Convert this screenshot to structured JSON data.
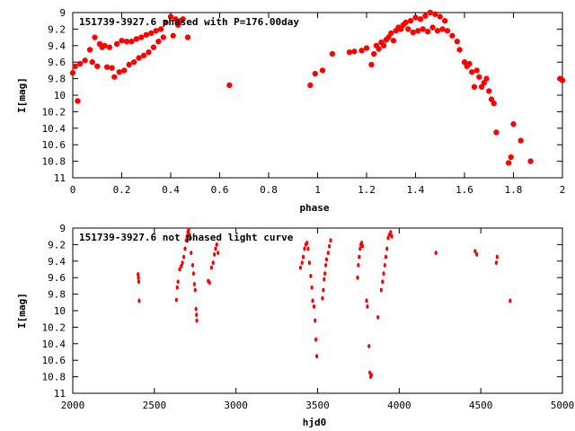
{
  "chart_data": [
    {
      "type": "scatter",
      "title": "151739-3927.6 phased with P=176.00day",
      "xlabel": "phase",
      "ylabel": "I[mag]",
      "xlim": [
        0,
        2
      ],
      "ylim": [
        11,
        9
      ],
      "y_inverted": true,
      "xticks": [
        "0",
        "0.2",
        "0.4",
        "0.6",
        "0.8",
        "1",
        "1.2",
        "1.4",
        "1.6",
        "1.8",
        "2"
      ],
      "yticks": [
        "9",
        "9.2",
        "9.4",
        "9.6",
        "9.8",
        "10",
        "10.2",
        "10.4",
        "10.6",
        "10.8",
        "11"
      ],
      "grid": false,
      "marker_color": "#ff0000",
      "marker": "filled-octagon",
      "points": [
        [
          0.0,
          9.73
        ],
        [
          0.01,
          9.65
        ],
        [
          0.02,
          10.07
        ],
        [
          0.03,
          9.62
        ],
        [
          0.05,
          9.58
        ],
        [
          0.07,
          9.45
        ],
        [
          0.08,
          9.6
        ],
        [
          0.09,
          9.3
        ],
        [
          0.1,
          9.65
        ],
        [
          0.11,
          9.38
        ],
        [
          0.12,
          9.42
        ],
        [
          0.13,
          9.4
        ],
        [
          0.14,
          9.66
        ],
        [
          0.15,
          9.42
        ],
        [
          0.16,
          9.67
        ],
        [
          0.17,
          9.78
        ],
        [
          0.18,
          9.38
        ],
        [
          0.19,
          9.72
        ],
        [
          0.2,
          9.34
        ],
        [
          0.21,
          9.7
        ],
        [
          0.22,
          9.35
        ],
        [
          0.23,
          9.63
        ],
        [
          0.24,
          9.35
        ],
        [
          0.25,
          9.6
        ],
        [
          0.26,
          9.32
        ],
        [
          0.27,
          9.55
        ],
        [
          0.28,
          9.3
        ],
        [
          0.29,
          9.52
        ],
        [
          0.3,
          9.27
        ],
        [
          0.31,
          9.48
        ],
        [
          0.32,
          9.25
        ],
        [
          0.33,
          9.42
        ],
        [
          0.34,
          9.22
        ],
        [
          0.35,
          9.35
        ],
        [
          0.36,
          9.2
        ],
        [
          0.37,
          9.3
        ],
        [
          0.38,
          9.12
        ],
        [
          0.4,
          9.05
        ],
        [
          0.41,
          9.28
        ],
        [
          0.42,
          9.08
        ],
        [
          0.43,
          9.15
        ],
        [
          0.44,
          9.1
        ],
        [
          0.45,
          9.08
        ],
        [
          0.47,
          9.3
        ],
        [
          0.64,
          9.88
        ],
        [
          0.97,
          9.88
        ],
        [
          0.99,
          9.74
        ],
        [
          1.02,
          9.7
        ],
        [
          1.06,
          9.5
        ],
        [
          1.13,
          9.48
        ],
        [
          1.15,
          9.47
        ],
        [
          1.18,
          9.46
        ],
        [
          1.2,
          9.43
        ],
        [
          1.22,
          9.63
        ],
        [
          1.23,
          9.5
        ],
        [
          1.24,
          9.4
        ],
        [
          1.25,
          9.44
        ],
        [
          1.26,
          9.36
        ],
        [
          1.27,
          9.4
        ],
        [
          1.28,
          9.33
        ],
        [
          1.29,
          9.3
        ],
        [
          1.3,
          9.25
        ],
        [
          1.31,
          9.34
        ],
        [
          1.32,
          9.22
        ],
        [
          1.33,
          9.18
        ],
        [
          1.34,
          9.2
        ],
        [
          1.35,
          9.15
        ],
        [
          1.36,
          9.12
        ],
        [
          1.37,
          9.2
        ],
        [
          1.38,
          9.1
        ],
        [
          1.39,
          9.24
        ],
        [
          1.4,
          9.06
        ],
        [
          1.41,
          9.22
        ],
        [
          1.42,
          9.08
        ],
        [
          1.43,
          9.2
        ],
        [
          1.44,
          9.04
        ],
        [
          1.45,
          9.23
        ],
        [
          1.46,
          9.0
        ],
        [
          1.47,
          9.18
        ],
        [
          1.48,
          9.02
        ],
        [
          1.49,
          9.22
        ],
        [
          1.5,
          9.05
        ],
        [
          1.51,
          9.2
        ],
        [
          1.52,
          9.1
        ],
        [
          1.53,
          9.22
        ],
        [
          1.55,
          9.28
        ],
        [
          1.57,
          9.35
        ],
        [
          1.58,
          9.45
        ],
        [
          1.6,
          9.6
        ],
        [
          1.61,
          9.65
        ],
        [
          1.62,
          9.62
        ],
        [
          1.63,
          9.72
        ],
        [
          1.64,
          9.9
        ],
        [
          1.65,
          9.7
        ],
        [
          1.66,
          9.78
        ],
        [
          1.67,
          9.9
        ],
        [
          1.68,
          9.85
        ],
        [
          1.69,
          9.8
        ],
        [
          1.7,
          9.95
        ],
        [
          1.71,
          10.05
        ],
        [
          1.72,
          10.1
        ],
        [
          1.73,
          10.45
        ],
        [
          1.78,
          10.82
        ],
        [
          1.79,
          10.75
        ],
        [
          1.8,
          10.35
        ],
        [
          1.83,
          10.55
        ],
        [
          1.87,
          10.8
        ],
        [
          1.99,
          9.8
        ],
        [
          2.0,
          9.82
        ]
      ]
    },
    {
      "type": "scatter",
      "title": "151739-3927.6 not phased light curve",
      "xlabel": "hjd0",
      "ylabel": "I[mag]",
      "xlim": [
        2000,
        5000
      ],
      "ylim": [
        11,
        9
      ],
      "y_inverted": true,
      "xticks": [
        "2000",
        "2500",
        "3000",
        "3500",
        "4000",
        "4500",
        "5000"
      ],
      "yticks": [
        "9",
        "9.2",
        "9.4",
        "9.6",
        "9.8",
        "10",
        "10.2",
        "10.4",
        "10.6",
        "10.8",
        "11"
      ],
      "grid": false,
      "marker_color": "#ff0000",
      "marker": "dot",
      "points": [
        [
          2400,
          9.56
        ],
        [
          2402,
          9.6
        ],
        [
          2404,
          9.65
        ],
        [
          2407,
          9.88
        ],
        [
          2635,
          9.87
        ],
        [
          2640,
          9.72
        ],
        [
          2645,
          9.65
        ],
        [
          2655,
          9.5
        ],
        [
          2665,
          9.46
        ],
        [
          2672,
          9.42
        ],
        [
          2680,
          9.35
        ],
        [
          2688,
          9.25
        ],
        [
          2695,
          9.15
        ],
        [
          2700,
          9.1
        ],
        [
          2705,
          9.05
        ],
        [
          2710,
          9.02
        ],
        [
          2715,
          9.08
        ],
        [
          2720,
          9.12
        ],
        [
          2725,
          9.3
        ],
        [
          2735,
          9.45
        ],
        [
          2740,
          9.55
        ],
        [
          2745,
          9.68
        ],
        [
          2750,
          9.75
        ],
        [
          2755,
          9.98
        ],
        [
          2758,
          10.05
        ],
        [
          2760,
          10.12
        ],
        [
          2830,
          9.64
        ],
        [
          2838,
          9.66
        ],
        [
          2850,
          9.48
        ],
        [
          2860,
          9.42
        ],
        [
          2868,
          9.32
        ],
        [
          2875,
          9.25
        ],
        [
          2882,
          9.2
        ],
        [
          2890,
          9.3
        ],
        [
          3395,
          9.48
        ],
        [
          3405,
          9.42
        ],
        [
          3412,
          9.35
        ],
        [
          3420,
          9.25
        ],
        [
          3428,
          9.2
        ],
        [
          3435,
          9.18
        ],
        [
          3442,
          9.25
        ],
        [
          3450,
          9.42
        ],
        [
          3458,
          9.58
        ],
        [
          3465,
          9.72
        ],
        [
          3470,
          9.88
        ],
        [
          3478,
          9.95
        ],
        [
          3485,
          10.12
        ],
        [
          3490,
          10.35
        ],
        [
          3495,
          10.55
        ],
        [
          3530,
          9.85
        ],
        [
          3535,
          9.75
        ],
        [
          3540,
          9.62
        ],
        [
          3545,
          9.55
        ],
        [
          3550,
          9.45
        ],
        [
          3555,
          9.38
        ],
        [
          3565,
          9.3
        ],
        [
          3572,
          9.22
        ],
        [
          3580,
          9.15
        ],
        [
          3745,
          9.6
        ],
        [
          3750,
          9.45
        ],
        [
          3755,
          9.35
        ],
        [
          3760,
          9.25
        ],
        [
          3765,
          9.2
        ],
        [
          3770,
          9.18
        ],
        [
          3775,
          9.22
        ],
        [
          3800,
          9.88
        ],
        [
          3805,
          9.95
        ],
        [
          3815,
          10.43
        ],
        [
          3820,
          10.75
        ],
        [
          3825,
          10.8
        ],
        [
          3830,
          10.78
        ],
        [
          3870,
          10.08
        ],
        [
          3890,
          9.75
        ],
        [
          3898,
          9.65
        ],
        [
          3905,
          9.55
        ],
        [
          3912,
          9.45
        ],
        [
          3918,
          9.35
        ],
        [
          3925,
          9.25
        ],
        [
          3932,
          9.12
        ],
        [
          3940,
          9.08
        ],
        [
          3948,
          9.05
        ],
        [
          3955,
          9.1
        ],
        [
          4225,
          9.3
        ],
        [
          4465,
          9.28
        ],
        [
          4475,
          9.32
        ],
        [
          4595,
          9.42
        ],
        [
          4600,
          9.35
        ],
        [
          4680,
          9.88
        ]
      ]
    }
  ]
}
